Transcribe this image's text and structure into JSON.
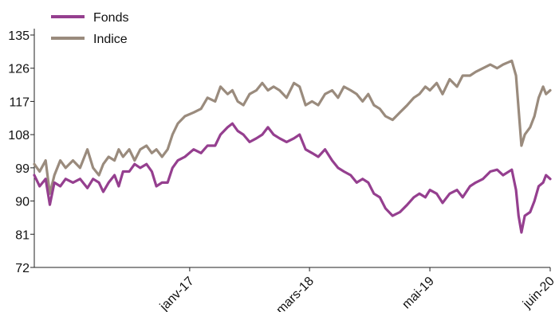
{
  "chart_data": {
    "type": "line",
    "title": "",
    "xlabel": "",
    "ylabel": "",
    "ylim": [
      72,
      135
    ],
    "yticks": [
      72,
      81,
      90,
      99,
      108,
      117,
      126,
      135
    ],
    "xlim": [
      "2015-07-01",
      "2020-06-30"
    ],
    "xticks": [
      {
        "label": "janv-17",
        "date": "2017-01-01"
      },
      {
        "label": "mars-18",
        "date": "2018-03-01"
      },
      {
        "label": "mai-19",
        "date": "2019-05-01"
      },
      {
        "label": "juin-20",
        "date": "2020-06-30"
      }
    ],
    "grid": false,
    "legend_position": "top-left",
    "series": [
      {
        "name": "Fonds",
        "color": "#953F8F",
        "points": [
          [
            "2015-07-01",
            97
          ],
          [
            "2015-07-20",
            94
          ],
          [
            "2015-08-10",
            96
          ],
          [
            "2015-08-25",
            89
          ],
          [
            "2015-09-10",
            95
          ],
          [
            "2015-10-01",
            94
          ],
          [
            "2015-10-20",
            96
          ],
          [
            "2015-11-15",
            95
          ],
          [
            "2015-12-10",
            96
          ],
          [
            "2016-01-05",
            93.5
          ],
          [
            "2016-01-25",
            96
          ],
          [
            "2016-02-15",
            95
          ],
          [
            "2016-03-01",
            92.5
          ],
          [
            "2016-03-20",
            95
          ],
          [
            "2016-04-10",
            97
          ],
          [
            "2016-04-25",
            94
          ],
          [
            "2016-05-10",
            98
          ],
          [
            "2016-06-01",
            98
          ],
          [
            "2016-06-20",
            100
          ],
          [
            "2016-07-10",
            99
          ],
          [
            "2016-08-01",
            100
          ],
          [
            "2016-08-20",
            98
          ],
          [
            "2016-09-05",
            94
          ],
          [
            "2016-09-25",
            95
          ],
          [
            "2016-10-15",
            95
          ],
          [
            "2016-11-01",
            99
          ],
          [
            "2016-11-20",
            101
          ],
          [
            "2016-12-15",
            102
          ],
          [
            "2017-01-15",
            104
          ],
          [
            "2017-02-10",
            103
          ],
          [
            "2017-03-05",
            105
          ],
          [
            "2017-04-01",
            105
          ],
          [
            "2017-04-20",
            108
          ],
          [
            "2017-05-15",
            110
          ],
          [
            "2017-06-01",
            111
          ],
          [
            "2017-06-20",
            109
          ],
          [
            "2017-07-10",
            108
          ],
          [
            "2017-08-01",
            106
          ],
          [
            "2017-08-25",
            107
          ],
          [
            "2017-09-15",
            108
          ],
          [
            "2017-10-05",
            110
          ],
          [
            "2017-10-25",
            108
          ],
          [
            "2017-11-15",
            107
          ],
          [
            "2017-12-10",
            106
          ],
          [
            "2018-01-05",
            107
          ],
          [
            "2018-01-25",
            108
          ],
          [
            "2018-02-15",
            104
          ],
          [
            "2018-03-10",
            103
          ],
          [
            "2018-04-01",
            102
          ],
          [
            "2018-04-25",
            104
          ],
          [
            "2018-05-20",
            101
          ],
          [
            "2018-06-10",
            99
          ],
          [
            "2018-07-01",
            98
          ],
          [
            "2018-07-25",
            97
          ],
          [
            "2018-08-15",
            95
          ],
          [
            "2018-09-05",
            96
          ],
          [
            "2018-09-25",
            95
          ],
          [
            "2018-10-15",
            92
          ],
          [
            "2018-11-05",
            91
          ],
          [
            "2018-11-25",
            88
          ],
          [
            "2018-12-20",
            86
          ],
          [
            "2019-01-15",
            87
          ],
          [
            "2019-02-10",
            89
          ],
          [
            "2019-03-05",
            91
          ],
          [
            "2019-03-25",
            92
          ],
          [
            "2019-04-15",
            91
          ],
          [
            "2019-05-01",
            93
          ],
          [
            "2019-05-25",
            92
          ],
          [
            "2019-06-15",
            89.5
          ],
          [
            "2019-07-10",
            92
          ],
          [
            "2019-08-05",
            93
          ],
          [
            "2019-08-25",
            91
          ],
          [
            "2019-09-20",
            94
          ],
          [
            "2019-10-10",
            95
          ],
          [
            "2019-11-05",
            96
          ],
          [
            "2019-12-01",
            98
          ],
          [
            "2019-12-25",
            98.5
          ],
          [
            "2020-01-15",
            97
          ],
          [
            "2020-02-15",
            98.5
          ],
          [
            "2020-03-01",
            93
          ],
          [
            "2020-03-10",
            86
          ],
          [
            "2020-03-20",
            81.5
          ],
          [
            "2020-04-01",
            86
          ],
          [
            "2020-04-20",
            87
          ],
          [
            "2020-05-05",
            90
          ],
          [
            "2020-05-20",
            94
          ],
          [
            "2020-06-05",
            95
          ],
          [
            "2020-06-15",
            97
          ],
          [
            "2020-06-30",
            96
          ]
        ]
      },
      {
        "name": "Indice",
        "color": "#9A8B7D",
        "points": [
          [
            "2015-07-01",
            100
          ],
          [
            "2015-07-20",
            98
          ],
          [
            "2015-08-10",
            101
          ],
          [
            "2015-08-25",
            92
          ],
          [
            "2015-09-10",
            97
          ],
          [
            "2015-10-01",
            101
          ],
          [
            "2015-10-20",
            99
          ],
          [
            "2015-11-15",
            101
          ],
          [
            "2015-12-10",
            99
          ],
          [
            "2016-01-05",
            104
          ],
          [
            "2016-01-25",
            99
          ],
          [
            "2016-02-15",
            97
          ],
          [
            "2016-03-01",
            100
          ],
          [
            "2016-03-20",
            102
          ],
          [
            "2016-04-10",
            101
          ],
          [
            "2016-04-25",
            104
          ],
          [
            "2016-05-10",
            102
          ],
          [
            "2016-06-01",
            104
          ],
          [
            "2016-06-20",
            101
          ],
          [
            "2016-07-10",
            104
          ],
          [
            "2016-08-01",
            105
          ],
          [
            "2016-08-20",
            103
          ],
          [
            "2016-09-05",
            104
          ],
          [
            "2016-09-25",
            102
          ],
          [
            "2016-10-15",
            104
          ],
          [
            "2016-11-01",
            108
          ],
          [
            "2016-11-20",
            111
          ],
          [
            "2016-12-15",
            113
          ],
          [
            "2017-01-15",
            114
          ],
          [
            "2017-02-10",
            115
          ],
          [
            "2017-03-05",
            118
          ],
          [
            "2017-04-01",
            117
          ],
          [
            "2017-04-20",
            121
          ],
          [
            "2017-05-15",
            119
          ],
          [
            "2017-06-01",
            120
          ],
          [
            "2017-06-20",
            117
          ],
          [
            "2017-07-10",
            116
          ],
          [
            "2017-08-01",
            119
          ],
          [
            "2017-08-25",
            120
          ],
          [
            "2017-09-15",
            122
          ],
          [
            "2017-10-05",
            120
          ],
          [
            "2017-10-25",
            121
          ],
          [
            "2017-11-15",
            120
          ],
          [
            "2017-12-10",
            118
          ],
          [
            "2018-01-05",
            122
          ],
          [
            "2018-01-25",
            121
          ],
          [
            "2018-02-15",
            116
          ],
          [
            "2018-03-10",
            117
          ],
          [
            "2018-04-01",
            116
          ],
          [
            "2018-04-25",
            119
          ],
          [
            "2018-05-20",
            120
          ],
          [
            "2018-06-10",
            118
          ],
          [
            "2018-07-01",
            121
          ],
          [
            "2018-07-25",
            120
          ],
          [
            "2018-08-15",
            119
          ],
          [
            "2018-09-05",
            117
          ],
          [
            "2018-09-25",
            119
          ],
          [
            "2018-10-15",
            116
          ],
          [
            "2018-11-05",
            115
          ],
          [
            "2018-11-25",
            113
          ],
          [
            "2018-12-20",
            112
          ],
          [
            "2019-01-15",
            114
          ],
          [
            "2019-02-10",
            116
          ],
          [
            "2019-03-05",
            118
          ],
          [
            "2019-03-25",
            119
          ],
          [
            "2019-04-15",
            121
          ],
          [
            "2019-05-01",
            120
          ],
          [
            "2019-05-25",
            122
          ],
          [
            "2019-06-15",
            119
          ],
          [
            "2019-07-10",
            123
          ],
          [
            "2019-08-05",
            121
          ],
          [
            "2019-08-25",
            124
          ],
          [
            "2019-09-20",
            124
          ],
          [
            "2019-10-10",
            125
          ],
          [
            "2019-11-05",
            126
          ],
          [
            "2019-12-01",
            127
          ],
          [
            "2019-12-25",
            126
          ],
          [
            "2020-01-15",
            127
          ],
          [
            "2020-02-15",
            128
          ],
          [
            "2020-03-01",
            124
          ],
          [
            "2020-03-10",
            115
          ],
          [
            "2020-03-20",
            105
          ],
          [
            "2020-04-01",
            108
          ],
          [
            "2020-04-20",
            110
          ],
          [
            "2020-05-05",
            113
          ],
          [
            "2020-05-20",
            118
          ],
          [
            "2020-06-05",
            121
          ],
          [
            "2020-06-15",
            119
          ],
          [
            "2020-06-30",
            120
          ]
        ]
      }
    ]
  }
}
